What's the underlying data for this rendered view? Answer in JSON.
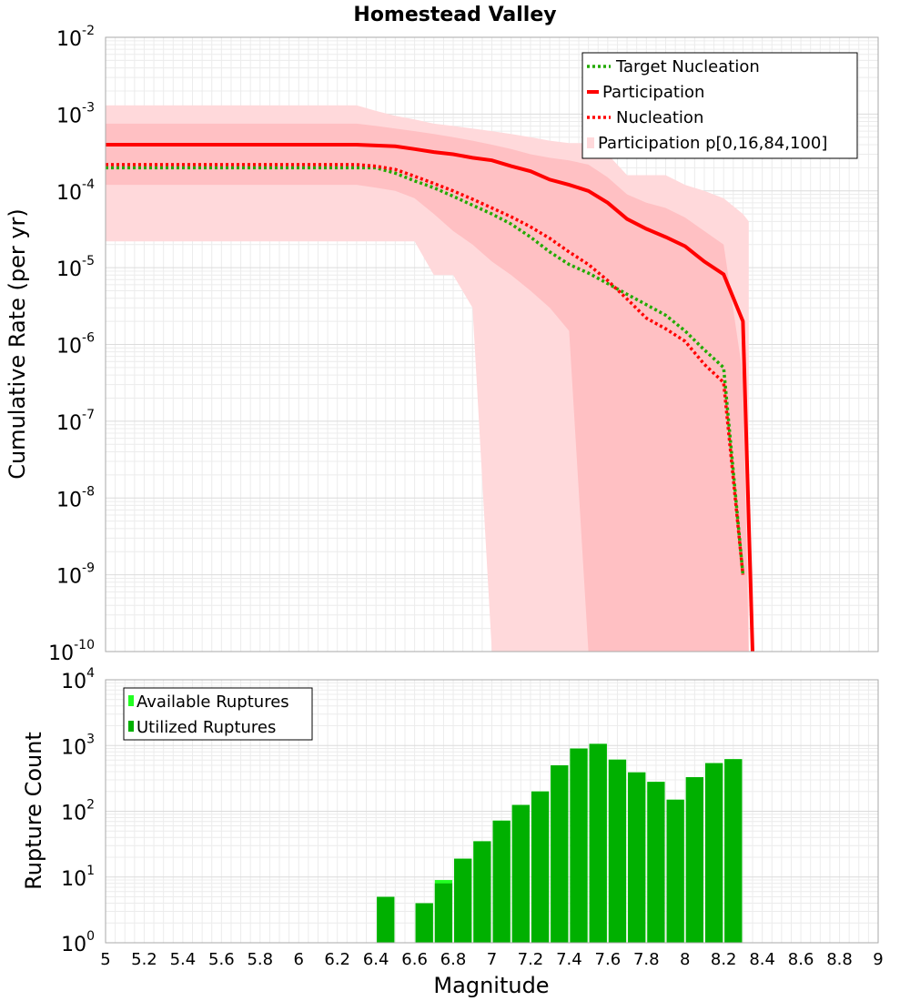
{
  "chart_data": [
    {
      "type": "line",
      "title": "Homestead Valley",
      "xlabel": "",
      "ylabel": "Cumulative Rate (per yr)",
      "yscale": "log",
      "xlim": [
        5,
        9
      ],
      "ylim_exp": [
        -10,
        -2
      ],
      "ytick_exps": [
        "-2",
        "-3",
        "-4",
        "-5",
        "-6",
        "-7",
        "-8",
        "-9",
        "-10"
      ],
      "grid": true,
      "legend_position": "top-right",
      "legend": [
        "Target Nucleation",
        "Participation",
        "Nucleation",
        "Participation p[0,16,84,100]"
      ],
      "series": [
        {
          "name": "Target Nucleation",
          "color": "#22aa00",
          "style": "dotted",
          "x": [
            5.0,
            6.3,
            6.4,
            6.5,
            6.6,
            6.7,
            6.8,
            6.9,
            7.0,
            7.1,
            7.2,
            7.3,
            7.4,
            7.5,
            7.6,
            7.7,
            7.8,
            7.9,
            8.0,
            8.1,
            8.2,
            8.3
          ],
          "y": [
            0.0002,
            0.0002,
            0.0002,
            0.00017,
            0.000135,
            0.00011,
            8.5e-05,
            6.5e-05,
            5e-05,
            3.7e-05,
            2.5e-05,
            1.6e-05,
            1.1e-05,
            8.5e-06,
            6.2e-06,
            4.5e-06,
            3.3e-06,
            2.4e-06,
            1.5e-06,
            8.5e-07,
            5e-07,
            1e-09
          ]
        },
        {
          "name": "Participation",
          "color": "#ff0000",
          "style": "solid",
          "x": [
            5.0,
            6.3,
            6.5,
            6.6,
            6.7,
            6.8,
            6.9,
            7.0,
            7.1,
            7.2,
            7.3,
            7.4,
            7.5,
            7.6,
            7.7,
            7.8,
            7.9,
            8.0,
            8.1,
            8.2,
            8.3,
            8.35
          ],
          "y": [
            0.0004,
            0.0004,
            0.00038,
            0.00035,
            0.00032,
            0.0003,
            0.00027,
            0.00025,
            0.00021,
            0.00018,
            0.00014,
            0.00012,
            0.0001,
            7e-05,
            4.3e-05,
            3.2e-05,
            2.5e-05,
            1.9e-05,
            1.2e-05,
            8.2e-06,
            2e-06,
            1e-10
          ]
        },
        {
          "name": "Nucleation",
          "color": "#ff0000",
          "style": "dotted",
          "x": [
            5.0,
            6.3,
            6.4,
            6.5,
            6.6,
            6.7,
            6.8,
            6.9,
            7.0,
            7.1,
            7.2,
            7.3,
            7.4,
            7.5,
            7.6,
            7.7,
            7.8,
            7.9,
            8.0,
            8.1,
            8.2,
            8.3
          ],
          "y": [
            0.00022,
            0.00022,
            0.00021,
            0.00019,
            0.000155,
            0.000125,
            0.0001,
            7.8e-05,
            6e-05,
            4.6e-05,
            3.4e-05,
            2.4e-05,
            1.6e-05,
            1.1e-05,
            6.8e-06,
            3.9e-06,
            2.2e-06,
            1.6e-06,
            1.1e-06,
            5.5e-07,
            3.2e-07,
            1e-09
          ]
        }
      ],
      "band_outer": {
        "name": "Participation p[0,16,84,100]",
        "color": "#ffd9db",
        "x": [
          5.0,
          6.3,
          6.4,
          6.5,
          6.6,
          6.7,
          6.8,
          6.9,
          7.0,
          7.1,
          7.2,
          7.3,
          7.4,
          7.5,
          7.6,
          7.7,
          7.8,
          7.9,
          8.0,
          8.1,
          8.2,
          8.3,
          8.33
        ],
        "upper": [
          0.0013,
          0.0013,
          0.0011,
          0.00095,
          0.00085,
          0.00075,
          0.0007,
          0.00065,
          0.0006,
          0.00055,
          0.0005,
          0.00045,
          0.00042,
          0.00042,
          0.0003,
          0.00016,
          0.00016,
          0.00016,
          0.00012,
          0.0001,
          8e-05,
          5e-05,
          4e-05
        ],
        "lower": [
          2.2e-05,
          2.2e-05,
          2.2e-05,
          2.2e-05,
          2.2e-05,
          8e-06,
          8e-06,
          3e-06,
          1e-10,
          1e-10,
          1e-10,
          1e-10,
          1e-10,
          1e-10,
          1e-10,
          1e-10,
          1e-10,
          1e-10,
          1e-10,
          1e-10,
          1e-10,
          1e-10,
          1e-10
        ]
      },
      "band_inner": {
        "color": "#ffc0c3",
        "x": [
          5.0,
          6.3,
          6.4,
          6.5,
          6.6,
          6.7,
          6.8,
          6.9,
          7.0,
          7.1,
          7.2,
          7.3,
          7.4,
          7.5,
          7.6,
          7.7,
          7.8,
          7.9,
          8.0,
          8.1,
          8.2,
          8.3,
          8.33
        ],
        "upper": [
          0.00075,
          0.00075,
          0.0007,
          0.00065,
          0.0006,
          0.00055,
          0.0005,
          0.00045,
          0.0004,
          0.00035,
          0.0003,
          0.00027,
          0.00025,
          0.00022,
          0.00015,
          9e-05,
          7e-05,
          6e-05,
          4.5e-05,
          3e-05,
          2e-05,
          4e-07,
          1e-10
        ],
        "lower": [
          0.00012,
          0.00012,
          0.00011,
          0.0001,
          8e-05,
          5e-05,
          3e-05,
          2e-05,
          1.2e-05,
          8e-06,
          5e-06,
          3e-06,
          1.5e-06,
          1e-10,
          1e-10,
          1e-10,
          1e-10,
          1e-10,
          1e-10,
          1e-10,
          1e-10,
          1e-10,
          1e-10
        ]
      }
    },
    {
      "type": "bar",
      "title": "",
      "xlabel": "Magnitude",
      "ylabel": "Rupture Count",
      "yscale": "log",
      "xlim": [
        5,
        9
      ],
      "ylim_exp": [
        0,
        4
      ],
      "ytick_exps": [
        "4",
        "3",
        "2",
        "1",
        "0"
      ],
      "xticks": [
        "5",
        "5.2",
        "5.4",
        "5.6",
        "5.8",
        "6",
        "6.2",
        "6.4",
        "6.6",
        "6.8",
        "7",
        "7.2",
        "7.4",
        "7.6",
        "7.8",
        "8",
        "8.2",
        "8.4",
        "8.6",
        "8.8",
        "9"
      ],
      "grid": true,
      "legend_position": "top-left",
      "legend": [
        "Available Ruptures",
        "Utilized Ruptures"
      ],
      "available_color": "#22ff22",
      "utilized_color": "#00b000",
      "bin_width": 0.1,
      "bin_centers": [
        6.45,
        6.55,
        6.65,
        6.75,
        6.85,
        6.95,
        7.05,
        7.15,
        7.25,
        7.35,
        7.45,
        7.55,
        7.65,
        7.75,
        7.85,
        7.95,
        8.05,
        8.15,
        8.25
      ],
      "available": [
        5,
        1,
        4,
        9,
        19,
        35,
        72,
        125,
        200,
        500,
        900,
        1060,
        610,
        390,
        280,
        150,
        330,
        540,
        620
      ],
      "utilized": [
        5,
        1,
        4,
        8,
        19,
        35,
        72,
        125,
        200,
        500,
        900,
        1060,
        610,
        390,
        280,
        150,
        330,
        540,
        620
      ]
    }
  ]
}
